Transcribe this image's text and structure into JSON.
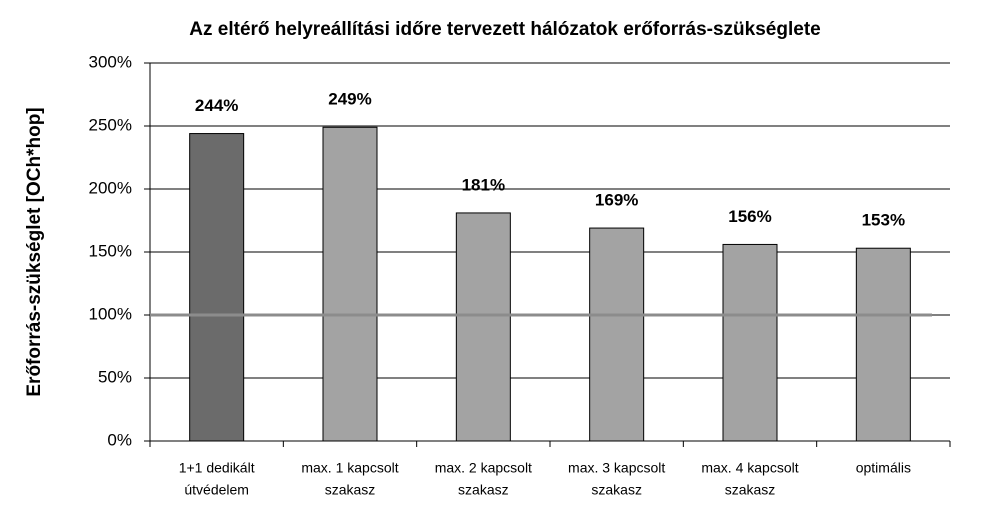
{
  "chart_data": {
    "type": "bar",
    "title": "Az eltérő helyreállítási időre tervezett hálózatok erőforrás-szükséglete",
    "y_label": "Erőforrás-szükséglet [OCh*hop]",
    "categories": [
      [
        "1+1 dedikált",
        "útvédelem"
      ],
      [
        "max. 1 kapcsolt",
        "szakasz"
      ],
      [
        "max. 2 kapcsolt",
        "szakasz"
      ],
      [
        "max. 3 kapcsolt",
        "szakasz"
      ],
      [
        "max. 4 kapcsolt",
        "szakasz"
      ],
      [
        "optimális"
      ]
    ],
    "values": [
      244,
      249,
      181,
      169,
      156,
      153
    ],
    "value_labels": [
      "244%",
      "249%",
      "181%",
      "169%",
      "156%",
      "153%"
    ],
    "colors": [
      "#6b6b6b",
      "#a3a3a3",
      "#a3a3a3",
      "#a3a3a3",
      "#a3a3a3",
      "#a3a3a3"
    ],
    "reference_line": 100,
    "ylim": [
      0,
      300
    ],
    "yticks": [
      {
        "value": 0,
        "label": "0%"
      },
      {
        "value": 50,
        "label": "50%"
      },
      {
        "value": 100,
        "label": "100%"
      },
      {
        "value": 150,
        "label": "150%"
      },
      {
        "value": 200,
        "label": "200%"
      },
      {
        "value": 250,
        "label": "250%"
      },
      {
        "value": 300,
        "label": "300%"
      }
    ],
    "grid": true
  }
}
